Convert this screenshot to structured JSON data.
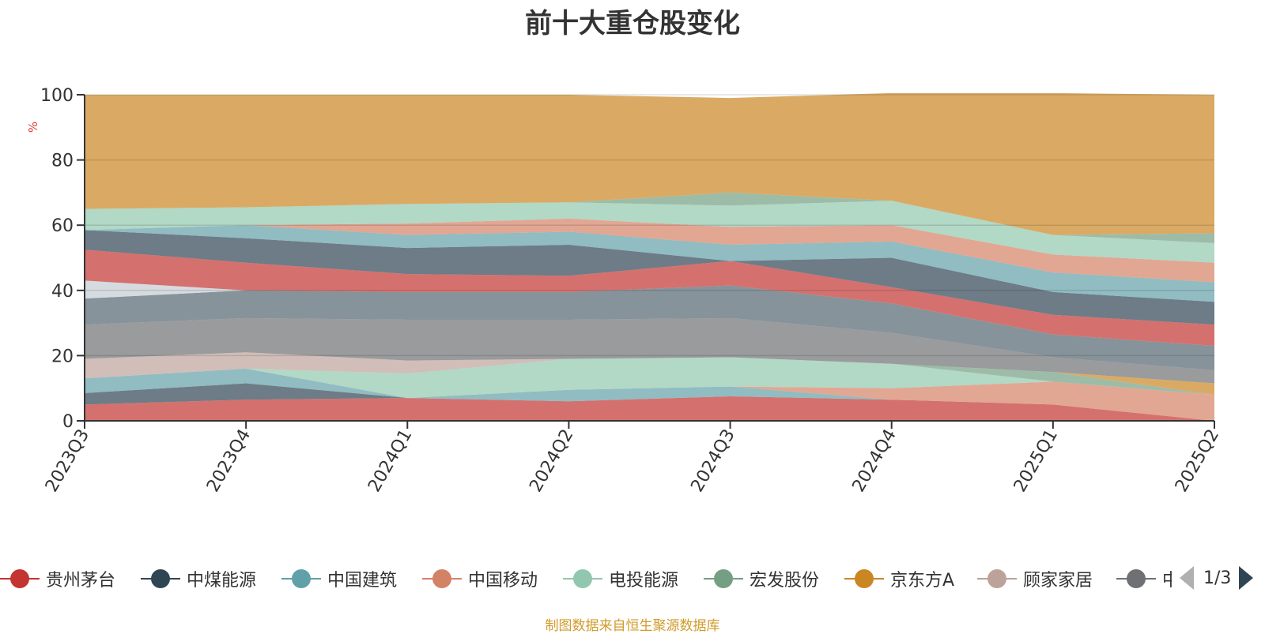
{
  "chart_data": {
    "type": "area",
    "stacked": true,
    "title": "前十大重仓股变化",
    "ylabel": "%",
    "xlabel": "",
    "ylim": [
      0,
      100
    ],
    "yticks": [
      0,
      20,
      40,
      60,
      80,
      100
    ],
    "grid": true,
    "categories": [
      "2023Q3",
      "2023Q4",
      "2024Q1",
      "2024Q2",
      "2024Q3",
      "2024Q4",
      "2025Q1",
      "2025Q2"
    ],
    "series": [
      {
        "name": "贵州茅台",
        "color": "#c23531",
        "values": [
          5,
          6.5,
          7,
          6,
          7.5,
          6.5,
          5,
          0
        ]
      },
      {
        "name": "中煤能源",
        "color": "#2f4554",
        "values": [
          3.5,
          5,
          0,
          0,
          0,
          0,
          0,
          0
        ]
      },
      {
        "name": "中国建筑",
        "color": "#61a0a8",
        "values": [
          4.5,
          4.5,
          0,
          3.5,
          3,
          0,
          0,
          0
        ]
      },
      {
        "name": "中国移动",
        "color": "#d48265",
        "values": [
          0,
          0,
          0,
          0,
          0,
          3.5,
          7,
          8
        ]
      },
      {
        "name": "电投能源",
        "color": "#91c7ae",
        "values": [
          0,
          0,
          7.5,
          9.5,
          9,
          7.5,
          0,
          0
        ]
      },
      {
        "name": "宏发股份",
        "color": "#749f83",
        "values": [
          0,
          0,
          0,
          0,
          0,
          0,
          3,
          0
        ]
      },
      {
        "name": "京东方A",
        "color": "#ca8622",
        "values": [
          0,
          0,
          0,
          0,
          0,
          0,
          0,
          3.5
        ]
      },
      {
        "name": "顾家家居",
        "color": "#bda29a",
        "values": [
          6,
          5,
          4,
          0,
          0,
          0,
          0,
          0
        ]
      },
      {
        "name": "中",
        "color": "#6e7074",
        "values": [
          10.5,
          10.5,
          12.5,
          12,
          12,
          9.5,
          4.5,
          4
        ]
      },
      {
        "name": "",
        "color": "#546570",
        "values": [
          8,
          8.5,
          8.5,
          8.5,
          10,
          9,
          7,
          7.5
        ]
      },
      {
        "name": "",
        "color": "#c4ccd3",
        "values": [
          5.5,
          0,
          0,
          0,
          0,
          0,
          0,
          0
        ]
      },
      {
        "name": "",
        "color": "#c23531",
        "values": [
          9.5,
          8.5,
          5.5,
          5,
          7.5,
          5,
          6,
          6.5
        ]
      },
      {
        "name": "",
        "color": "#2f4554",
        "values": [
          6,
          7.5,
          8,
          9.5,
          0,
          9,
          7,
          7
        ]
      },
      {
        "name": "",
        "color": "#61a0a8",
        "values": [
          0,
          4,
          4,
          4,
          5,
          5,
          6,
          6
        ]
      },
      {
        "name": "",
        "color": "#d48265",
        "values": [
          0,
          0,
          3.5,
          4,
          5.5,
          5,
          5.5,
          6
        ]
      },
      {
        "name": "",
        "color": "#91c7ae",
        "values": [
          6.5,
          5.5,
          6,
          5,
          6.5,
          7.5,
          6,
          6
        ]
      },
      {
        "name": "",
        "color": "#749f83",
        "values": [
          0,
          0,
          0,
          0,
          4,
          0,
          0,
          3
        ]
      },
      {
        "name": "",
        "color": "#ca8622",
        "values": [
          35,
          34.5,
          33.5,
          33,
          29,
          33,
          43.5,
          42.5
        ]
      }
    ]
  },
  "legend": {
    "items": [
      {
        "label": "贵州茅台",
        "color": "#c23531"
      },
      {
        "label": "中煤能源",
        "color": "#2f4554"
      },
      {
        "label": "中国建筑",
        "color": "#61a0a8"
      },
      {
        "label": "中国移动",
        "color": "#d48265"
      },
      {
        "label": "电投能源",
        "color": "#91c7ae"
      },
      {
        "label": "宏发股份",
        "color": "#749f83"
      },
      {
        "label": "京东方A",
        "color": "#ca8622"
      },
      {
        "label": "顾家家居",
        "color": "#bda29a"
      },
      {
        "label": "中",
        "color": "#6e7074"
      }
    ],
    "page_indicator": "1/3"
  },
  "source_note": "制图数据来自恒生聚源数据库"
}
